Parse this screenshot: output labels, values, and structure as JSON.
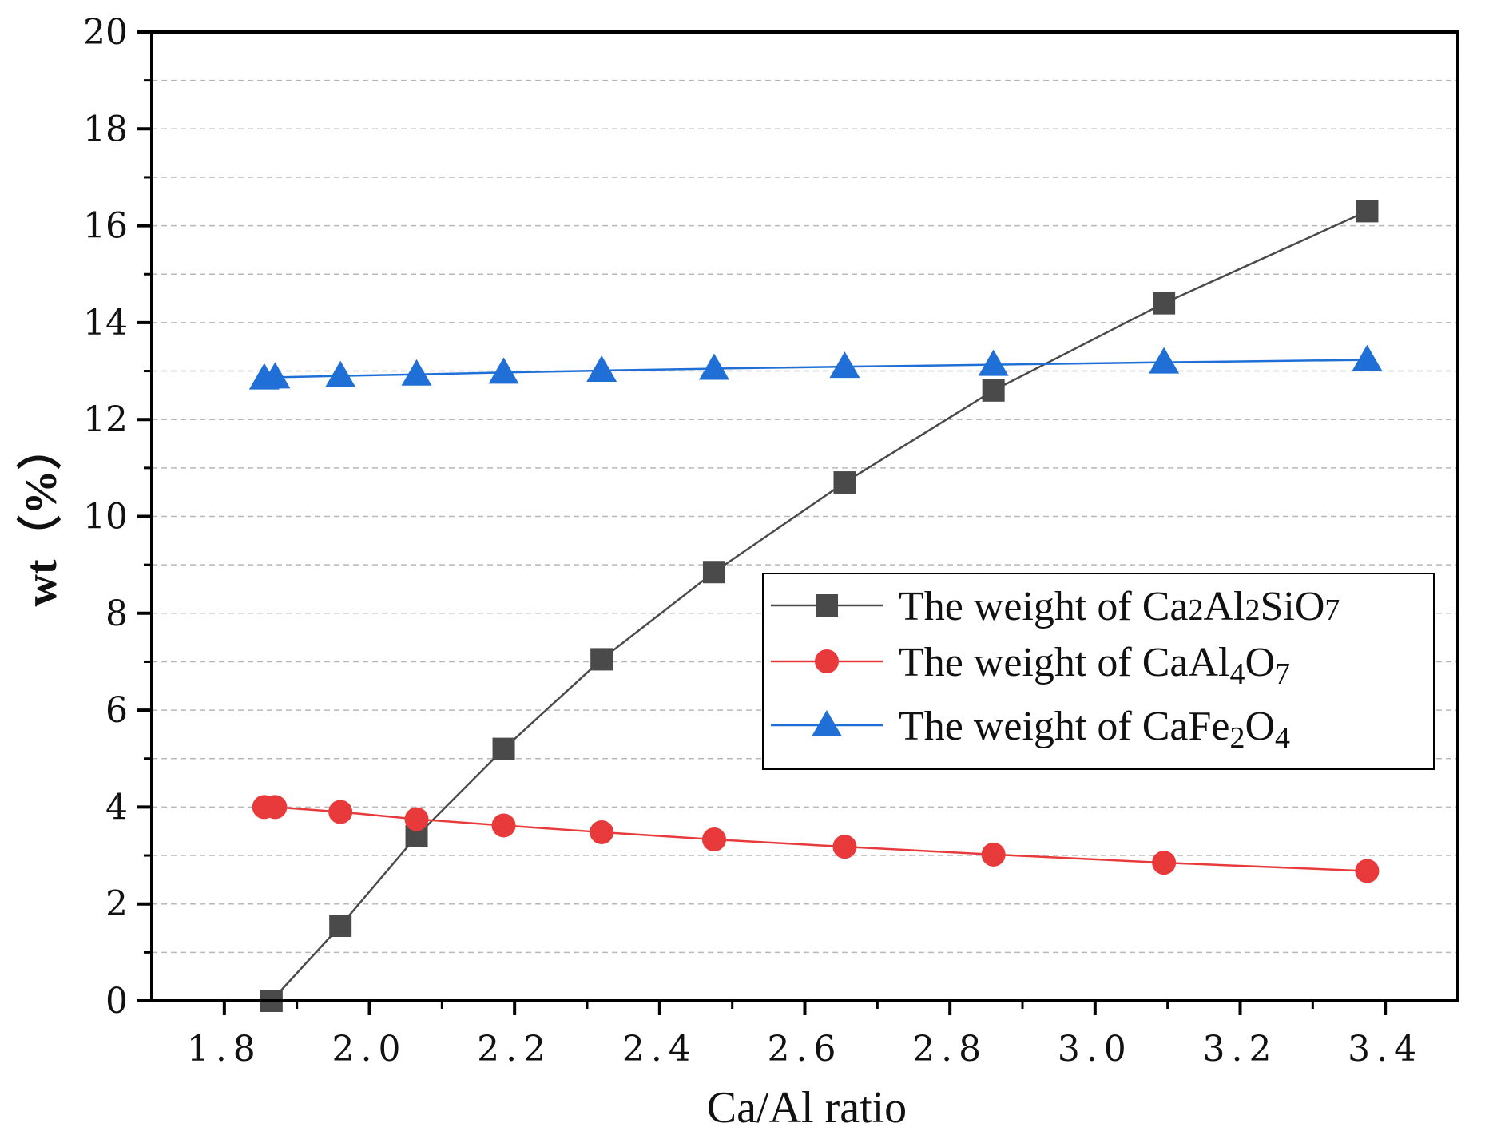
{
  "chart_data": {
    "type": "line",
    "xlabel": "Ca/Al  ratio",
    "ylabel": "wt（%）",
    "xlim": [
      1.7,
      3.5
    ],
    "ylim": [
      0,
      20
    ],
    "x_ticks": [
      {
        "v": 1.8,
        "label": "1.8"
      },
      {
        "v": 2.0,
        "label": "2.0"
      },
      {
        "v": 2.2,
        "label": "2.2"
      },
      {
        "v": 2.4,
        "label": "2.4"
      },
      {
        "v": 2.6,
        "label": "2.6"
      },
      {
        "v": 2.8,
        "label": "2.8"
      },
      {
        "v": 3.0,
        "label": "3.0"
      },
      {
        "v": 3.2,
        "label": "3.2"
      },
      {
        "v": 3.4,
        "label": "3.4"
      }
    ],
    "y_ticks": [
      {
        "v": 0,
        "label": "0"
      },
      {
        "v": 2,
        "label": "2"
      },
      {
        "v": 4,
        "label": "4"
      },
      {
        "v": 6,
        "label": "6"
      },
      {
        "v": 8,
        "label": "8"
      },
      {
        "v": 10,
        "label": "10"
      },
      {
        "v": 12,
        "label": "12"
      },
      {
        "v": 14,
        "label": "14"
      },
      {
        "v": 16,
        "label": "16"
      },
      {
        "v": 18,
        "label": "18"
      },
      {
        "v": 20,
        "label": "20"
      }
    ],
    "grid": "horizontal dashed",
    "legend_position": "right",
    "series": [
      {
        "name_parts": [
          [
            "The weight of  Ca",
            ""
          ],
          [
            "2",
            "inline-small"
          ],
          [
            "Al",
            ""
          ],
          [
            "2",
            "inline-small"
          ],
          [
            "SiO",
            ""
          ],
          [
            "7",
            "inline-small"
          ]
        ],
        "color": "#4a4a4a",
        "marker": "square",
        "x": [
          1.865,
          1.96,
          2.065,
          2.185,
          2.32,
          2.475,
          2.655,
          2.86,
          3.095,
          3.375
        ],
        "y": [
          0.0,
          1.55,
          3.4,
          5.2,
          7.05,
          8.85,
          10.7,
          12.6,
          14.4,
          16.3
        ]
      },
      {
        "name_parts": [
          [
            "The weight of CaAl",
            ""
          ],
          [
            "4",
            "sub"
          ],
          [
            "O",
            ""
          ],
          [
            "7",
            "sub"
          ]
        ],
        "color": "#e83a3a",
        "marker": "circle",
        "x": [
          1.855,
          1.87,
          1.96,
          2.065,
          2.185,
          2.32,
          2.475,
          2.655,
          2.86,
          3.095,
          3.375
        ],
        "y": [
          4.0,
          4.0,
          3.9,
          3.75,
          3.62,
          3.48,
          3.33,
          3.18,
          3.02,
          2.85,
          2.68
        ]
      },
      {
        "name_parts": [
          [
            "The weight of CaFe",
            ""
          ],
          [
            "2",
            "sub"
          ],
          [
            "O",
            ""
          ],
          [
            "4",
            "sub"
          ]
        ],
        "color": "#1f6fd6",
        "marker": "triangle",
        "x": [
          1.855,
          1.87,
          1.96,
          2.065,
          2.185,
          2.32,
          2.475,
          2.655,
          2.86,
          3.095,
          3.375
        ],
        "y": [
          12.85,
          12.87,
          12.9,
          12.93,
          12.97,
          13.01,
          13.05,
          13.09,
          13.13,
          13.18,
          13.23
        ]
      }
    ]
  }
}
